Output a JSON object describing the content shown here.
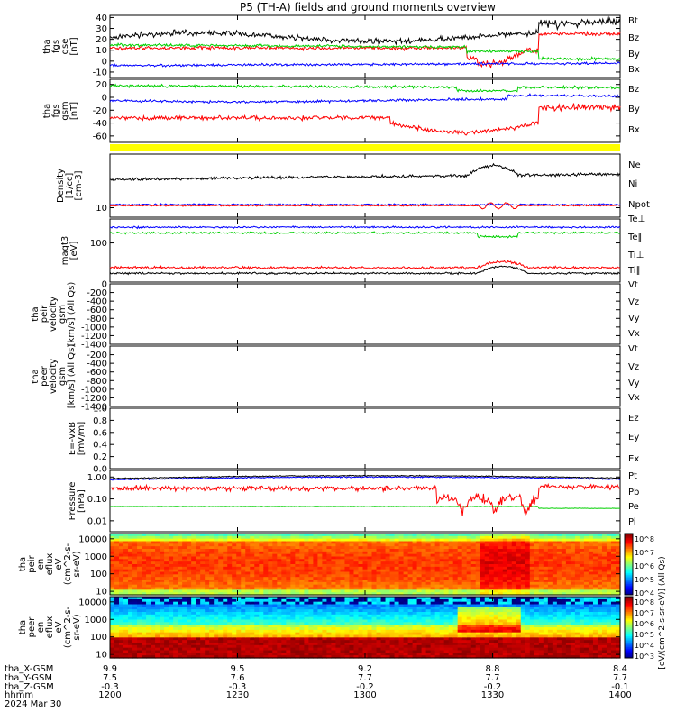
{
  "title": "P5 (TH-A) fields and ground moments overview",
  "colors": {
    "black": "#000000",
    "red": "#ff0000",
    "green": "#00d000",
    "blue": "#0000ff",
    "yellow": "#ffff00"
  },
  "time_axis": {
    "ticks": [
      "1200",
      "1230",
      "1300",
      "1330",
      "1400"
    ],
    "range_hhmm": [
      "1200",
      "1400"
    ],
    "date": "2024 Mar 30",
    "row_labels": [
      "tha_X-GSM",
      "tha_Y-GSM",
      "tha_Z-GSM",
      "hhmm"
    ],
    "ephemeris": [
      [
        "9.9",
        "9.5",
        "9.2",
        "8.8",
        "8.4"
      ],
      [
        "7.5",
        "7.6",
        "7.7",
        "7.7",
        "7.7"
      ],
      [
        "-0.3",
        "-0.3",
        "-0.2",
        "-0.2",
        "-0.1"
      ]
    ]
  },
  "chart_data": [
    {
      "type": "line",
      "panel": "fgs_gse",
      "ylabel": [
        "tha",
        "fgs",
        "gse",
        "[nT]"
      ],
      "ylim": [
        -15,
        42
      ],
      "yticks": [
        "40",
        "30",
        "20",
        "10",
        "0",
        "-10"
      ],
      "legend": [
        "Bt",
        "Bz",
        "By",
        "Bx"
      ],
      "series": [
        {
          "name": "Bt",
          "color": "#000000",
          "approx": "~22 rising to ~38 after 1348"
        },
        {
          "name": "Bz",
          "color": "#ff0000",
          "approx": "~12, dipping near 1330-1340"
        },
        {
          "name": "By",
          "color": "#00d000",
          "approx": "~15, declining to ~0 after 1340"
        },
        {
          "name": "Bx",
          "color": "#0000ff",
          "approx": "~-5 to 0"
        }
      ]
    },
    {
      "type": "line",
      "panel": "fgs_gsm",
      "ylabel": [
        "tha",
        "fgs",
        "gsm",
        "[nT]"
      ],
      "ylim": [
        -70,
        28
      ],
      "yticks": [
        "20",
        "0",
        "-20",
        "-40",
        "-60"
      ],
      "legend": [
        "Bz",
        "By",
        "Bx"
      ],
      "series": [
        {
          "name": "Bz",
          "color": "#ff0000",
          "approx": "~-32, min ~-60 near 1335"
        },
        {
          "name": "By",
          "color": "#00d000",
          "approx": "~18"
        },
        {
          "name": "Bx",
          "color": "#0000ff",
          "approx": "~-5"
        }
      ]
    },
    {
      "type": "line",
      "panel": "density",
      "ylabel": [
        "Density",
        "[1/cc]",
        "[cm-3]"
      ],
      "yscale": "log",
      "yticks": [
        "10"
      ],
      "legend": [
        "Ne",
        "Ni",
        "Npot"
      ],
      "series": [
        {
          "name": "Ne",
          "color": "#ff0000",
          "approx": "~11"
        },
        {
          "name": "Ni",
          "color": "#000000",
          "approx": "~30, peak ~45 near 1330"
        },
        {
          "name": "Npot",
          "color": "#0000ff",
          "approx": "~11"
        }
      ]
    },
    {
      "type": "line",
      "panel": "temperature",
      "ylabel": [
        "magt3",
        "[eV]"
      ],
      "yscale": "log",
      "yticks": [
        "100"
      ],
      "legend": [
        "Te⊥",
        "Te∥",
        "Ti⊥",
        "Ti∥"
      ],
      "series": [
        {
          "name": "Te⊥",
          "color": "#ff0000"
        },
        {
          "name": "Te∥",
          "color": "#000000"
        },
        {
          "name": "Ti⊥",
          "color": "#0000ff"
        },
        {
          "name": "Ti∥",
          "color": "#00d000"
        }
      ]
    },
    {
      "type": "line",
      "panel": "peir_velocity",
      "ylabel": [
        "tha",
        "peir",
        "velocity",
        "gsm",
        "[km/s] (All Qs)"
      ],
      "ylim": [
        -1400,
        0
      ],
      "yticks": [
        "0",
        "-200",
        "-400",
        "-600",
        "-800",
        "-1000",
        "-1200",
        "-1400"
      ],
      "legend": [
        "Vt",
        "Vz",
        "Vy",
        "Vx"
      ],
      "series": []
    },
    {
      "type": "line",
      "panel": "peer_velocity",
      "ylabel": [
        "tha",
        "peer",
        "velocity",
        "gsm",
        "[km/s] (All Qs)"
      ],
      "ylim": [
        -1400,
        0
      ],
      "yticks": [
        "-200",
        "-400",
        "-600",
        "-800",
        "-1000",
        "-1200",
        "-1400"
      ],
      "legend": [
        "Vt",
        "Vz",
        "Vy",
        "Vx"
      ],
      "series": []
    },
    {
      "type": "line",
      "panel": "efield",
      "ylabel": [
        "E=-VxB",
        "[mV/m]"
      ],
      "ylim": [
        0,
        1
      ],
      "yticks": [
        "1.0",
        "0.8",
        "0.6",
        "0.4",
        "0.2",
        "0.0"
      ],
      "legend": [
        "Ez",
        "Ey",
        "Ex"
      ],
      "series": []
    },
    {
      "type": "line",
      "panel": "pressure",
      "ylabel": [
        "Pressure",
        "[nPa]"
      ],
      "yscale": "log",
      "yticks": [
        "1.00",
        "0.10",
        "0.01"
      ],
      "legend": [
        "Pt",
        "Pb",
        "Pe",
        "Pi"
      ],
      "series": [
        {
          "name": "Pt",
          "color": "#000000",
          "approx": "~0.8"
        },
        {
          "name": "Pb",
          "color": "#ff0000",
          "approx": "~0.3, min ~0.006 near 1335"
        },
        {
          "name": "Pe",
          "color": "#00d000",
          "approx": "~0.04"
        },
        {
          "name": "Pi",
          "color": "#0000ff",
          "approx": "~0.7"
        }
      ]
    },
    {
      "type": "heatmap",
      "panel": "peir_spectrogram",
      "ylabel": [
        "tha",
        "peir",
        "en",
        "eflux",
        "eV",
        "(cm^2-s-",
        "sr-eV)"
      ],
      "yscale": "log",
      "yticks": [
        "10000",
        "1000",
        "100",
        "10"
      ],
      "zscale": "log"
    },
    {
      "type": "heatmap",
      "panel": "peer_spectrogram",
      "ylabel": [
        "tha",
        "peer",
        "en",
        "eflux",
        "eV",
        "(cm^2-s-",
        "sr-eV)"
      ],
      "yscale": "log",
      "yticks": [
        "10000",
        "1000",
        "100",
        "10"
      ],
      "zscale": "log"
    }
  ],
  "colorbar": {
    "label": "[eV/(cm^2-s-sr-eV)] (All Qs)",
    "ticks_top": [
      "10^8",
      "10^7",
      "10^6",
      "10^5",
      "10^4"
    ],
    "ticks_bottom": [
      "10^8",
      "10^7",
      "10^6",
      "10^5",
      "10^4",
      "10^3"
    ]
  }
}
